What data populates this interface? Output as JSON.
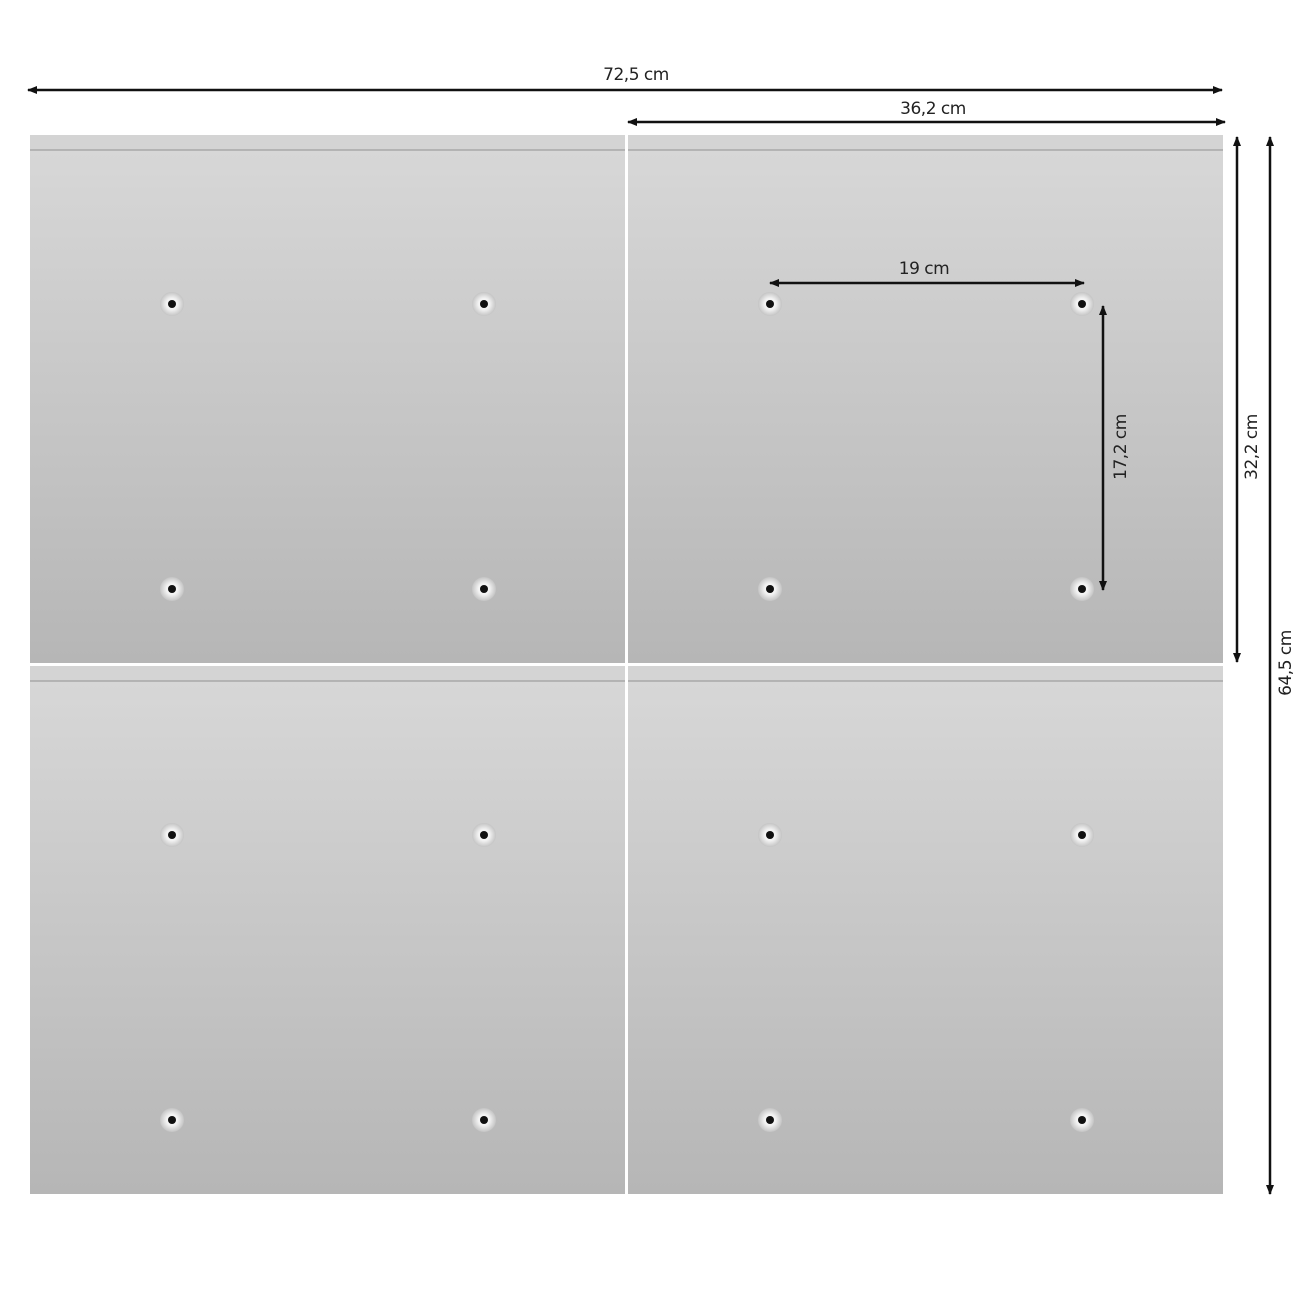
{
  "dimensions": {
    "total_width": "72,5 cm",
    "panel_width": "36,2 cm",
    "hole_spacing_horizontal": "19 cm",
    "hole_spacing_vertical": "17,2 cm",
    "panel_height": "32,2 cm",
    "total_height": "64,5 cm"
  },
  "colors": {
    "panel_top": "#d8d8d8",
    "panel_bottom": "#b6b6b6",
    "arrow": "#111111"
  }
}
